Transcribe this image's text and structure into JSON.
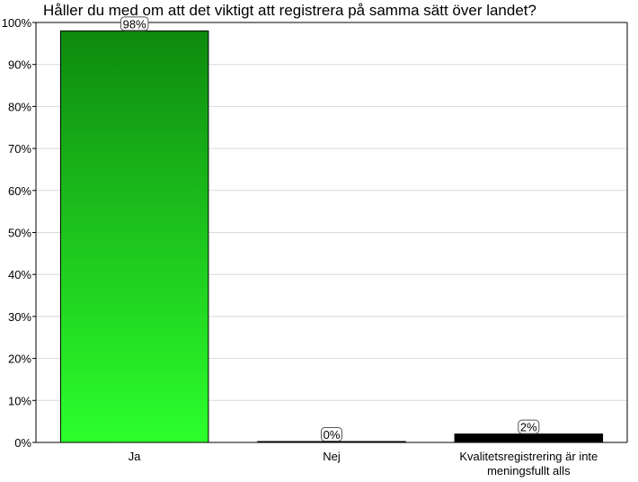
{
  "chart_data": {
    "type": "bar",
    "title": "Håller du med om att det viktigt att registrera på samma sätt över landet?",
    "categories": [
      [
        "Ja"
      ],
      [
        "Nej"
      ],
      [
        "Kvalitetsregistrering är inte",
        "meningsfullt alls"
      ]
    ],
    "values": [
      98,
      0,
      2
    ],
    "data_labels": [
      "98%",
      "0%",
      "2%"
    ],
    "y_ticks": [
      "0%",
      "10%",
      "20%",
      "30%",
      "40%",
      "50%",
      "60%",
      "70%",
      "80%",
      "90%",
      "100%"
    ],
    "ylim": [
      0,
      100
    ],
    "grid": true,
    "colors": {
      "ja_top": "#0e8a0e",
      "ja_bottom": "#2cff2c",
      "other_bar": "#000000",
      "gridline": "#d9d9d9",
      "axis": "#000000"
    }
  }
}
